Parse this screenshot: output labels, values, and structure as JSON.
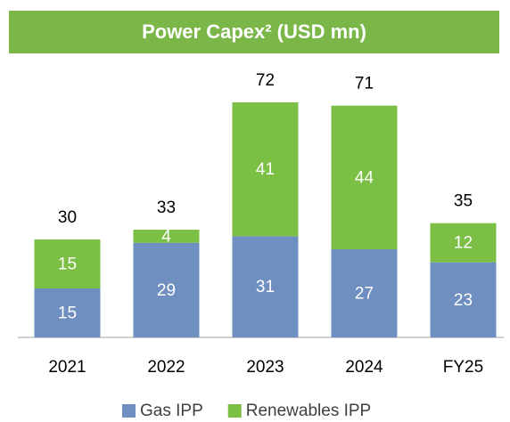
{
  "chart_data": {
    "type": "stacked_bar",
    "title": "Power Capex² (USD mn)",
    "categories": [
      "2021",
      "2022",
      "2023",
      "2024",
      "FY25"
    ],
    "series": [
      {
        "name": "Gas IPP",
        "color": "#6f8fc0",
        "values": [
          15,
          29,
          31,
          27,
          23
        ]
      },
      {
        "name": "Renewables IPP",
        "color": "#7cbf45",
        "values": [
          15,
          4,
          41,
          44,
          12
        ]
      }
    ],
    "totals": [
      30,
      33,
      72,
      71,
      35
    ],
    "legend": "bottom"
  }
}
